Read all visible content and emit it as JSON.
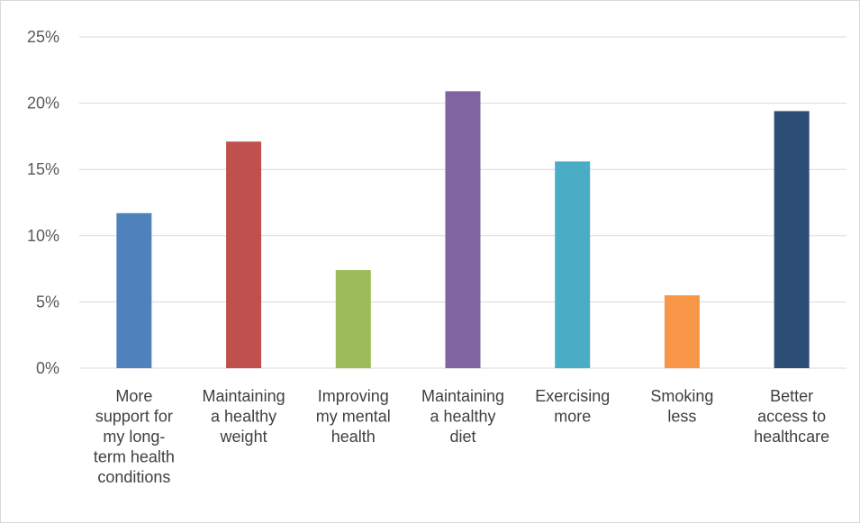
{
  "chart_data": {
    "type": "bar",
    "categories": [
      [
        "More",
        "support for",
        "my long-",
        "term health",
        "conditions"
      ],
      [
        "Maintaining",
        "a healthy",
        "weight"
      ],
      [
        "Improving",
        "my mental",
        "health"
      ],
      [
        "Maintaining",
        "a healthy",
        "diet"
      ],
      [
        "Exercising",
        "more"
      ],
      [
        "Smoking",
        "less"
      ],
      [
        "Better",
        "access to",
        "healthcare"
      ]
    ],
    "values": [
      11.7,
      17.1,
      7.4,
      20.9,
      15.6,
      5.5,
      19.4
    ],
    "value_unit": "%",
    "colors": [
      "#4f81bd",
      "#c0504d",
      "#9bbb59",
      "#8064a2",
      "#4bacc6",
      "#f79646",
      "#2c4d75"
    ],
    "ylim": [
      0,
      25
    ],
    "yticks": [
      "0%",
      "5%",
      "10%",
      "15%",
      "20%",
      "25%"
    ],
    "grid": true,
    "legend": "none",
    "title": "",
    "xlabel": "",
    "ylabel": ""
  }
}
